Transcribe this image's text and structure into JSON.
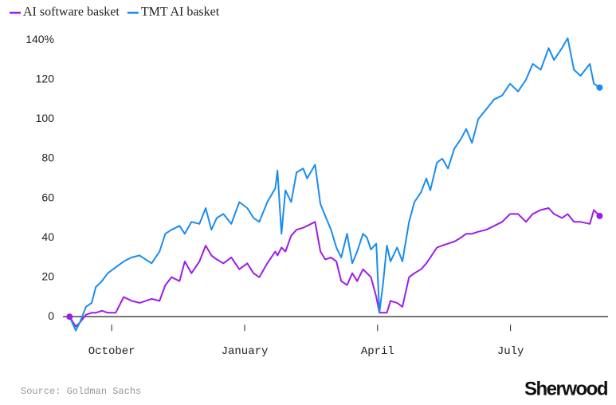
{
  "chart_data": {
    "type": "line",
    "source": "Source: Goldman Sachs",
    "brand": "Sherwood",
    "x": [
      9.05,
      9.19,
      9.28,
      9.42,
      9.55,
      9.64,
      9.78,
      9.91,
      10.09,
      10.27,
      10.45,
      10.63,
      10.9,
      11.08,
      11.21,
      11.35,
      11.53,
      11.65,
      11.8,
      11.98,
      12.12,
      12.25,
      12.37,
      12.52,
      12.7,
      12.88,
      13.06,
      13.2,
      13.33,
      13.51,
      13.69,
      13.74,
      13.83,
      13.92,
      14.05,
      14.17,
      14.32,
      14.41,
      14.59,
      14.71,
      14.82,
      14.95,
      15.07,
      15.18,
      15.31,
      15.43,
      15.54,
      15.67,
      15.76,
      15.85,
      15.97,
      16.04,
      16.12,
      16.21,
      16.29,
      16.44,
      16.56,
      16.71,
      16.83,
      16.98,
      17.1,
      17.19,
      17.34,
      17.46,
      17.59,
      17.73,
      17.88,
      18.0,
      18.13,
      18.27,
      18.45,
      18.63,
      18.81,
      18.99,
      19.17,
      19.35,
      19.5,
      19.68,
      19.86,
      19.98,
      20.16,
      20.29,
      20.43,
      20.58,
      20.79,
      20.88,
      21.01
    ],
    "series": [
      {
        "name": "AI software basket",
        "color": "#9d1de6",
        "values": [
          0,
          -5,
          -3,
          1,
          2,
          2,
          3,
          2,
          2,
          10,
          8,
          7,
          9,
          8,
          16,
          20,
          18,
          28,
          22,
          28,
          36,
          31,
          29,
          27,
          30,
          24,
          27,
          22,
          20,
          27,
          33,
          31,
          35,
          33,
          41,
          44,
          45,
          46,
          48,
          33,
          29,
          30,
          28,
          18,
          16,
          22,
          18,
          24,
          22,
          20,
          10,
          2,
          2,
          2,
          8,
          7,
          5,
          20,
          22,
          24,
          27,
          30,
          35,
          36,
          37,
          38,
          40,
          42,
          42,
          43,
          44,
          46,
          48,
          52,
          52,
          48,
          52,
          54,
          55,
          52,
          50,
          52,
          48,
          48,
          47,
          54,
          51
        ]
      },
      {
        "name": "TMT AI basket",
        "color": "#1a8cf0",
        "values": [
          0,
          -7,
          -3,
          5,
          7,
          15,
          18,
          22,
          25,
          28,
          30,
          31,
          27,
          33,
          42,
          44,
          46,
          42,
          48,
          47,
          55,
          44,
          50,
          52,
          47,
          58,
          55,
          50,
          48,
          58,
          65,
          74,
          42,
          64,
          58,
          73,
          75,
          70,
          77,
          57,
          51,
          44,
          35,
          30,
          42,
          27,
          33,
          42,
          40,
          34,
          37,
          2,
          16,
          36,
          28,
          35,
          28,
          48,
          58,
          63,
          70,
          64,
          78,
          80,
          75,
          85,
          90,
          95,
          88,
          100,
          105,
          110,
          112,
          118,
          114,
          120,
          128,
          125,
          136,
          130,
          136,
          141,
          125,
          122,
          128,
          118,
          116
        ]
      }
    ],
    "xlim": [
      8.9,
      21.2
    ],
    "xticks": [
      {
        "value": 10,
        "label": "October"
      },
      {
        "value": 13,
        "label": "January"
      },
      {
        "value": 16,
        "label": "April"
      },
      {
        "value": 19,
        "label": "July"
      }
    ],
    "ylim": [
      -10,
      145
    ],
    "yticks": [
      0,
      20,
      40,
      60,
      80,
      100,
      120,
      {
        "value": 140,
        "label": "140%"
      }
    ],
    "grid": false,
    "legend": "top-left"
  }
}
